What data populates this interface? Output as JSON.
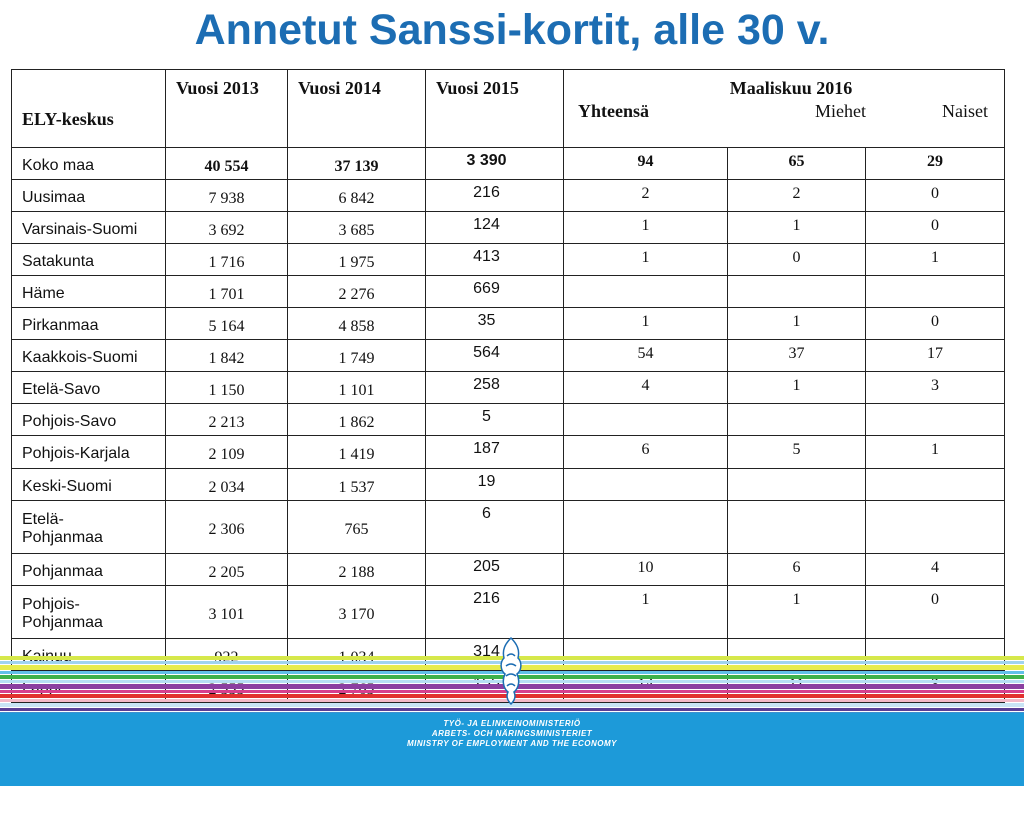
{
  "title": "Annetut Sanssi-kortit, alle 30 v.",
  "table": {
    "headers": {
      "ely": "ELY-keskus",
      "y2013": "Vuosi 2013",
      "y2014": "Vuosi 2014",
      "y2015": "Vuosi 2015",
      "march": "Maaliskuu 2016",
      "total": "Yhteensä",
      "men": "Miehet",
      "women": "Naiset"
    },
    "rows": [
      {
        "name": "Koko maa",
        "y2013": "40 554",
        "y2014": "37 139",
        "y2015": "3 390",
        "total": "94",
        "men": "65",
        "women": "29"
      },
      {
        "name": "Uusimaa",
        "y2013": "7 938",
        "y2014": "6 842",
        "y2015": "216",
        "total": "2",
        "men": "2",
        "women": "0"
      },
      {
        "name": "Varsinais-Suomi",
        "y2013": "3 692",
        "y2014": "3 685",
        "y2015": "124",
        "total": "1",
        "men": "1",
        "women": "0"
      },
      {
        "name": "Satakunta",
        "y2013": "1 716",
        "y2014": "1 975",
        "y2015": "413",
        "total": "1",
        "men": "0",
        "women": "1"
      },
      {
        "name": "Häme",
        "y2013": "1 701",
        "y2014": "2 276",
        "y2015": "669",
        "total": "",
        "men": "",
        "women": ""
      },
      {
        "name": "Pirkanmaa",
        "y2013": "5 164",
        "y2014": "4 858",
        "y2015": "35",
        "total": "1",
        "men": "1",
        "women": "0"
      },
      {
        "name": "Kaakkois-Suomi",
        "y2013": "1 842",
        "y2014": "1 749",
        "y2015": "564",
        "total": "54",
        "men": "37",
        "women": "17"
      },
      {
        "name": "Etelä-Savo",
        "y2013": "1 150",
        "y2014": "1 101",
        "y2015": "258",
        "total": "4",
        "men": "1",
        "women": "3"
      },
      {
        "name": "Pohjois-Savo",
        "y2013": "2 213",
        "y2014": "1 862",
        "y2015": "5",
        "total": "",
        "men": "",
        "women": ""
      },
      {
        "name": "Pohjois-Karjala",
        "y2013": "2 109",
        "y2014": "1 419",
        "y2015": "187",
        "total": "6",
        "men": "5",
        "women": "1"
      },
      {
        "name": "Keski-Suomi",
        "y2013": "2 034",
        "y2014": "1 537",
        "y2015": "19",
        "total": "",
        "men": "",
        "women": ""
      },
      {
        "name": "Etelä-Pohjanmaa",
        "y2013": "2 306",
        "y2014": "765",
        "y2015": "6",
        "total": "",
        "men": "",
        "women": ""
      },
      {
        "name": "Pohjanmaa",
        "y2013": "2 205",
        "y2014": "2 188",
        "y2015": "205",
        "total": "10",
        "men": "6",
        "women": "4"
      },
      {
        "name": "Pohjois-Pohjanmaa",
        "y2013": "3 101",
        "y2014": "3 170",
        "y2015": "216",
        "total": "1",
        "men": "1",
        "women": "0"
      },
      {
        "name": "Kainuu",
        "y2013": "922",
        "y2014": "1 034",
        "y2015": "314",
        "total": "",
        "men": "",
        "women": ""
      },
      {
        "name": "Lappi",
        "y2013": "2 555",
        "y2014": "2 765",
        "y2015": "155",
        "total": "14",
        "men": "11",
        "women": "3"
      }
    ]
  },
  "footer": {
    "line1": "TYÖ- JA ELINKEINOMINISTERIÖ",
    "line2": "ARBETS- OCH NÄRINGSMINISTERIET",
    "line3": "MINISTRY OF EMPLOYMENT AND THE ECONOMY"
  },
  "colors": {
    "title": "#1c6db3",
    "footer_band": "#1d9ad9"
  },
  "icons": {
    "logo": "lion-coat-of-arms-icon"
  }
}
